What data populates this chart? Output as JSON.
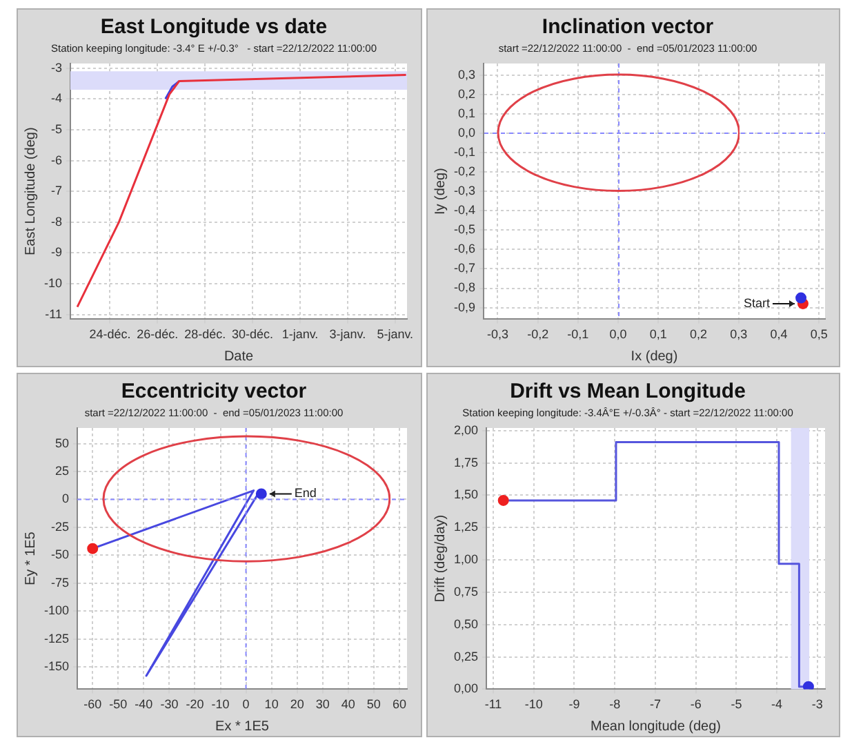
{
  "chart_data": [
    {
      "type": "line",
      "title": "East Longitude vs date",
      "subtitle": "Station keeping longitude: -3.4° E +/-0.3°   - start =22/12/2022 11:00:00",
      "xlabel": "Date",
      "ylabel": "East Longitude (deg)",
      "series": [
        {
          "color": "#e8303c",
          "x": [
            "2022-12-22T15:00",
            "2022-12-24T09:00",
            "2022-12-26T12:00",
            "2022-12-26T22:00",
            "2023-01-05T11:00"
          ],
          "values": [
            -10.75,
            -8.0,
            -3.85,
            -3.42,
            -3.22
          ]
        },
        {
          "color": "#4040e0",
          "x": [
            "2022-12-26T08:00",
            "2022-12-26T15:00",
            "2022-12-26T22:00"
          ],
          "values": [
            -4.0,
            -3.6,
            -3.42
          ]
        }
      ],
      "xlim": [
        "2022-12-22T08:00",
        "2023-01-05T12:00"
      ],
      "xticks": [
        {
          "value": "2022-12-24",
          "label": "24-déc."
        },
        {
          "value": "2022-12-26",
          "label": "26-déc."
        },
        {
          "value": "2022-12-28",
          "label": "28-déc."
        },
        {
          "value": "2022-12-30",
          "label": "30-déc."
        },
        {
          "value": "2023-01-01",
          "label": "1-janv."
        },
        {
          "value": "2023-01-03",
          "label": "3-janv."
        },
        {
          "value": "2023-01-05",
          "label": "5-janv."
        }
      ],
      "ylim": [
        -11.15,
        -2.85
      ],
      "yticks": [
        -3,
        -4,
        -5,
        -6,
        -7,
        -8,
        -9,
        -10,
        -11
      ],
      "bands": [
        {
          "axis": "y",
          "from": -3.7,
          "to": -3.1,
          "color": "#dcdcfa"
        }
      ],
      "grid": true,
      "legend": false,
      "marker": "none"
    },
    {
      "type": "scatter",
      "title": "Inclination vector",
      "subtitle": "start =22/12/2022 11:00:00  -  end =05/01/2023 11:00:00",
      "xlabel": "Ix (deg)",
      "ylabel": "Iy (deg)",
      "series": [
        {
          "marker": "circle",
          "color": "#3030e0",
          "x": [
            0.455
          ],
          "values": [
            -0.85
          ]
        },
        {
          "marker": "circle",
          "color": "#ee2020",
          "x": [
            0.46
          ],
          "values": [
            -0.88
          ]
        }
      ],
      "xlim": [
        -0.335,
        0.515
      ],
      "xticks": [
        {
          "value": -0.3,
          "label": "-0,3"
        },
        {
          "value": -0.2,
          "label": "-0,2"
        },
        {
          "value": -0.1,
          "label": "-0,1"
        },
        {
          "value": 0,
          "label": "0,0"
        },
        {
          "value": 0.1,
          "label": "0,1"
        },
        {
          "value": 0.2,
          "label": "0,2"
        },
        {
          "value": 0.3,
          "label": "0,3"
        },
        {
          "value": 0.4,
          "label": "0,4"
        },
        {
          "value": 0.5,
          "label": "0,5"
        }
      ],
      "ylim": [
        -0.96,
        0.36
      ],
      "yticks": [
        {
          "value": 0.3,
          "label": "0,3"
        },
        {
          "value": 0.2,
          "label": "0,2"
        },
        {
          "value": 0.1,
          "label": "0,1"
        },
        {
          "value": 0,
          "label": "0,0"
        },
        {
          "value": -0.1,
          "label": "-0,1"
        },
        {
          "value": -0.2,
          "label": "-0,2"
        },
        {
          "value": -0.3,
          "label": "-0,3"
        },
        {
          "value": -0.4,
          "label": "-0,4"
        },
        {
          "value": -0.5,
          "label": "-0,5"
        },
        {
          "value": -0.6,
          "label": "-0,6"
        },
        {
          "value": -0.7,
          "label": "-0,7"
        },
        {
          "value": -0.8,
          "label": "-0,8"
        },
        {
          "value": -0.9,
          "label": "-0,9"
        }
      ],
      "annotations": [
        {
          "text": "Start",
          "x": 0.46,
          "y": -0.88
        }
      ],
      "grid": true,
      "legend": false
    },
    {
      "type": "line",
      "title": "Eccentricity vector",
      "subtitle": "start =22/12/2022 11:00:00  -  end =05/01/2023 11:00:00",
      "xlabel": "Ex * 1E5",
      "ylabel": "Ey * 1E5",
      "series": [
        {
          "color": "#4848e0",
          "marker": "none",
          "x": [
            -60,
            3,
            -39,
            5,
            6
          ],
          "values": [
            -44,
            8,
            -158,
            6,
            5
          ]
        },
        {
          "type": "scatter",
          "marker": "circle",
          "color": "#ee2020",
          "x": [
            -60
          ],
          "values": [
            -44
          ]
        },
        {
          "type": "scatter",
          "marker": "circle",
          "color": "#3030e0",
          "x": [
            6
          ],
          "values": [
            5
          ]
        }
      ],
      "xlim": [
        -66,
        63
      ],
      "xticks": [
        -60,
        -50,
        -40,
        -30,
        -20,
        -10,
        0,
        10,
        20,
        30,
        40,
        50,
        60
      ],
      "ylim": [
        -170,
        64
      ],
      "yticks": [
        50,
        25,
        0,
        -25,
        -50,
        -75,
        -100,
        -125,
        -150
      ],
      "annotations": [
        {
          "text": "End",
          "x": 6,
          "y": 5
        }
      ],
      "grid": true,
      "legend": false
    },
    {
      "type": "step",
      "title": "Drift vs Mean Longitude",
      "subtitle": "Station keeping longitude: -3.4Â°E +/-0.3Â° - start =22/12/2022 11:00:00",
      "xlabel": "Mean longitude (deg)",
      "ylabel": "Drift (deg/day)",
      "series": [
        {
          "color": "#5555dd",
          "x": [
            -10.75,
            -7.97,
            -3.95,
            -3.45,
            -3.22
          ],
          "values": [
            1.46,
            1.91,
            0.97,
            0.02,
            0.02
          ]
        },
        {
          "type": "scatter",
          "marker": "circle",
          "color": "#ee2020",
          "x": [
            -10.75
          ],
          "values": [
            1.46
          ]
        },
        {
          "type": "scatter",
          "marker": "circle",
          "color": "#3030e0",
          "x": [
            -3.22
          ],
          "values": [
            0.02
          ]
        }
      ],
      "xlim": [
        -11.17,
        -2.81
      ],
      "xticks": [
        -11,
        -10,
        -9,
        -8,
        -7,
        -6,
        -5,
        -4,
        -3
      ],
      "ylim": [
        0,
        2.02
      ],
      "yticks": [
        {
          "value": 0,
          "label": "0,00"
        },
        {
          "value": 0.25,
          "label": "0,25"
        },
        {
          "value": 0.5,
          "label": "0,50"
        },
        {
          "value": 0.75,
          "label": "0,75"
        },
        {
          "value": 1,
          "label": "1,00"
        },
        {
          "value": 1.25,
          "label": "1,25"
        },
        {
          "value": 1.5,
          "label": "1,50"
        },
        {
          "value": 1.75,
          "label": "1,75"
        },
        {
          "value": 2,
          "label": "2,00"
        }
      ],
      "bands": [
        {
          "axis": "x",
          "from": -3.65,
          "to": -3.2,
          "color": "#dcdcfa"
        }
      ],
      "grid": true,
      "legend": false,
      "marker": "none"
    }
  ]
}
